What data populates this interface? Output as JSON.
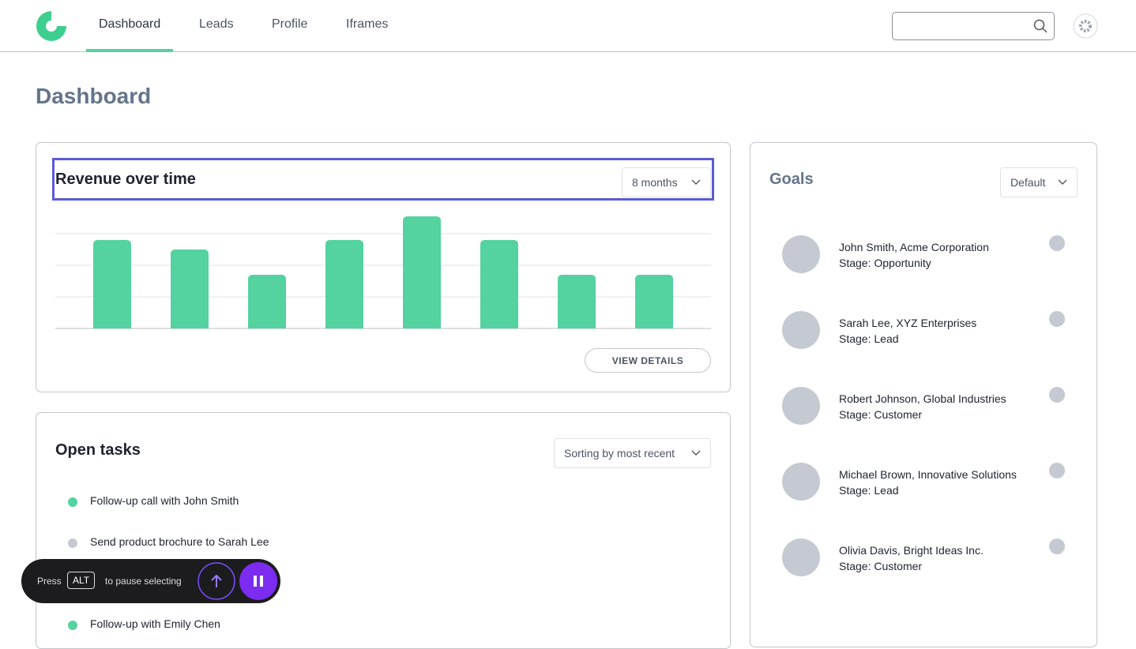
{
  "nav": {
    "items": [
      "Dashboard",
      "Leads",
      "Profile",
      "Iframes"
    ],
    "active": 0
  },
  "page_title": "Dashboard",
  "revenue_card": {
    "title": "Revenue over time",
    "range_select": "8 months",
    "button": "VIEW DETAILS",
    "chart_data": {
      "type": "bar",
      "categories": [
        null,
        null,
        null,
        null,
        null,
        null,
        null,
        null
      ],
      "values": [
        2.8,
        2.5,
        1.7,
        2.8,
        3.55,
        2.8,
        1.7,
        1.7
      ],
      "color": "#54d29f",
      "ylim": [
        0,
        3.6
      ],
      "yticks": [
        0,
        1,
        2,
        3
      ],
      "grid": true
    }
  },
  "tasks_card": {
    "title": "Open tasks",
    "sort_select": "Sorting by most recent",
    "tasks": [
      {
        "label": "Follow-up call with John Smith",
        "color": "#54d29f"
      },
      {
        "label": "Send product brochure to Sarah Lee",
        "color": "#c5c9d2"
      },
      {
        "label": "Follow-up with Emily Chen",
        "color": "#54d29f"
      }
    ]
  },
  "goals_card": {
    "title": "Goals",
    "select": "Default",
    "items": [
      {
        "name": "John Smith, Acme Corporation",
        "stage": "Stage: Opportunity"
      },
      {
        "name": "Sarah Lee, XYZ Enterprises",
        "stage": "Stage: Lead"
      },
      {
        "name": "Robert Johnson, Global Industries",
        "stage": "Stage: Customer"
      },
      {
        "name": "Michael Brown, Innovative Solutions",
        "stage": "Stage: Lead"
      },
      {
        "name": "Olivia Davis, Bright Ideas Inc.",
        "stage": "Stage: Customer"
      }
    ]
  },
  "overlay": {
    "press": "Press",
    "key": "ALT",
    "hint": "to pause selecting"
  }
}
